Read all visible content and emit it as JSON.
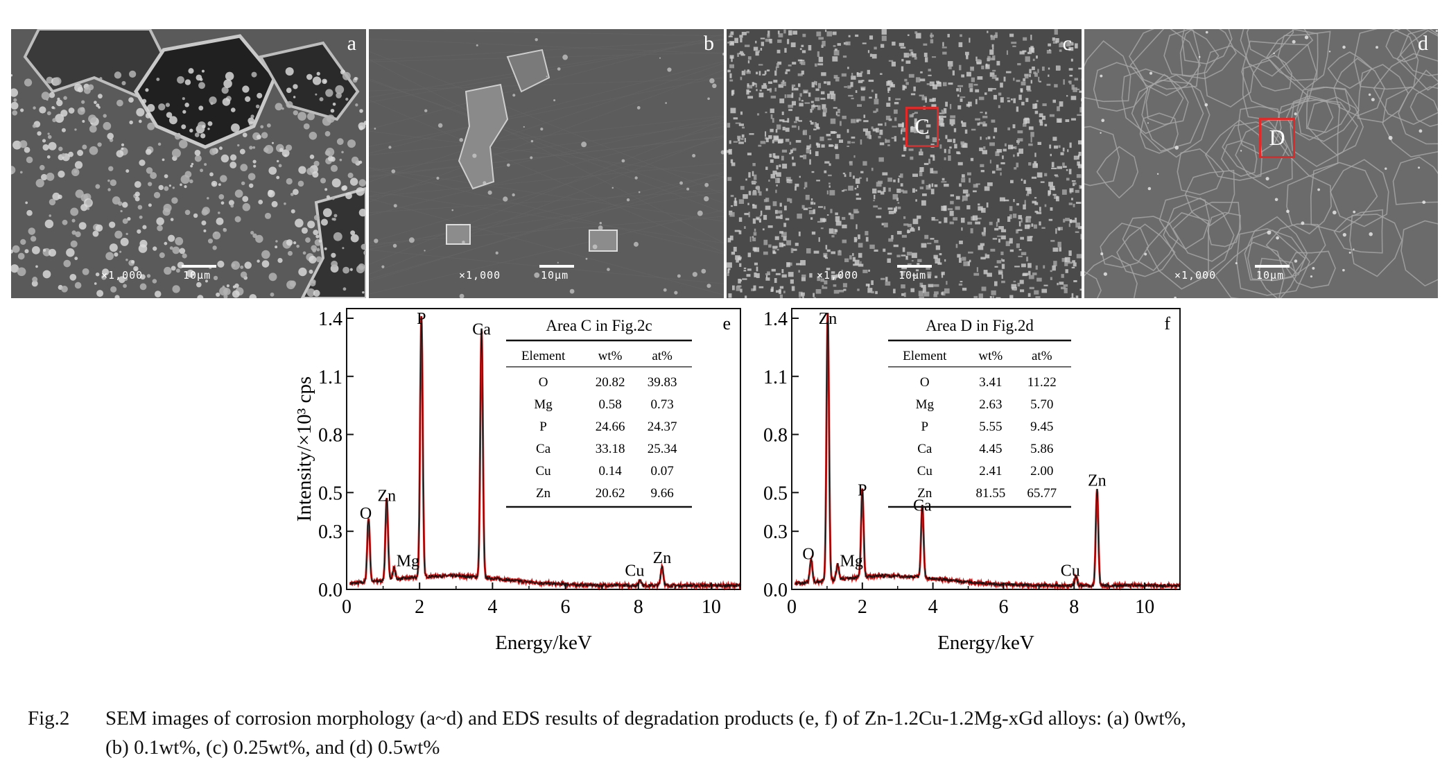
{
  "sem_panels": [
    {
      "letter": "a",
      "magnification": "×1,000",
      "scale_label": "10μm"
    },
    {
      "letter": "b",
      "magnification": "×1,000",
      "scale_label": "10μm"
    },
    {
      "letter": "c",
      "magnification": "×1,000",
      "scale_label": "10μm",
      "area_label": "C"
    },
    {
      "letter": "d",
      "magnification": "×1,000",
      "scale_label": "10μm",
      "area_label": "D"
    }
  ],
  "chart_data": [
    {
      "type": "line",
      "panel_letter": "e",
      "xlabel": "Energy/keV",
      "ylabel": "Intensity/×10³ cps",
      "xlim": [
        0,
        10.8
      ],
      "ylim": [
        0,
        1.45
      ],
      "xticks": [
        0,
        2,
        4,
        6,
        8,
        10
      ],
      "yticks": [
        0.0,
        0.3,
        0.5,
        0.8,
        1.1,
        1.4
      ],
      "ytick_labels": [
        "0.0",
        "0.3",
        "0.5",
        "0.8",
        "1.1",
        "1.4"
      ],
      "peaks": [
        {
          "label": "O",
          "energy": 0.6,
          "intensity": 0.33
        },
        {
          "label": "Zn",
          "energy": 1.1,
          "intensity": 0.42
        },
        {
          "label": "Mg",
          "energy": 1.3,
          "intensity": 0.06
        },
        {
          "label": "P",
          "energy": 2.05,
          "intensity": 1.35
        },
        {
          "label": "Ca",
          "energy": 3.7,
          "intensity": 1.28
        },
        {
          "label": "Cu",
          "energy": 8.05,
          "intensity": 0.03
        },
        {
          "label": "Zn",
          "energy": 8.65,
          "intensity": 0.1
        }
      ],
      "table": {
        "title": "Area C in Fig.2c",
        "headers": [
          "Element",
          "wt%",
          "at%"
        ],
        "rows": [
          [
            "O",
            "20.82",
            "39.83"
          ],
          [
            "Mg",
            "0.58",
            "0.73"
          ],
          [
            "P",
            "24.66",
            "24.37"
          ],
          [
            "Ca",
            "33.18",
            "25.34"
          ],
          [
            "Cu",
            "0.14",
            "0.07"
          ],
          [
            "Zn",
            "20.62",
            "9.66"
          ]
        ]
      }
    },
    {
      "type": "line",
      "panel_letter": "f",
      "xlabel": "Energy/keV",
      "ylabel": "",
      "xlim": [
        0,
        11
      ],
      "ylim": [
        0,
        1.45
      ],
      "xticks": [
        0,
        2,
        4,
        6,
        8,
        10
      ],
      "yticks": [
        0.0,
        0.3,
        0.5,
        0.8,
        1.1,
        1.4
      ],
      "ytick_labels": [
        "0.0",
        "0.3",
        "0.5",
        "0.8",
        "1.1",
        "1.4"
      ],
      "peaks": [
        {
          "label": "O",
          "energy": 0.55,
          "intensity": 0.12
        },
        {
          "label": "Zn",
          "energy": 1.02,
          "intensity": 1.38
        },
        {
          "label": "Mg",
          "energy": 1.3,
          "intensity": 0.08
        },
        {
          "label": "P",
          "energy": 2.0,
          "intensity": 0.45
        },
        {
          "label": "Ca",
          "energy": 3.7,
          "intensity": 0.37
        },
        {
          "label": "Cu",
          "energy": 8.05,
          "intensity": 0.05
        },
        {
          "label": "Zn",
          "energy": 8.65,
          "intensity": 0.5
        }
      ],
      "table": {
        "title": "Area D in Fig.2d",
        "headers": [
          "Element",
          "wt%",
          "at%"
        ],
        "rows": [
          [
            "O",
            "3.41",
            "11.22"
          ],
          [
            "Mg",
            "2.63",
            "5.70"
          ],
          [
            "P",
            "5.55",
            "9.45"
          ],
          [
            "Ca",
            "4.45",
            "5.86"
          ],
          [
            "Cu",
            "2.41",
            "2.00"
          ],
          [
            "Zn",
            "81.55",
            "65.77"
          ]
        ]
      }
    }
  ],
  "caption": {
    "figure_label": "Fig.2",
    "line1": "SEM images of corrosion morphology (a~d) and EDS results of degradation products (e, f) of Zn-1.2Cu-1.2Mg-xGd alloys: (a) 0wt%,",
    "line2": "(b) 0.1wt%, (c) 0.25wt%, and (d) 0.5wt%"
  }
}
